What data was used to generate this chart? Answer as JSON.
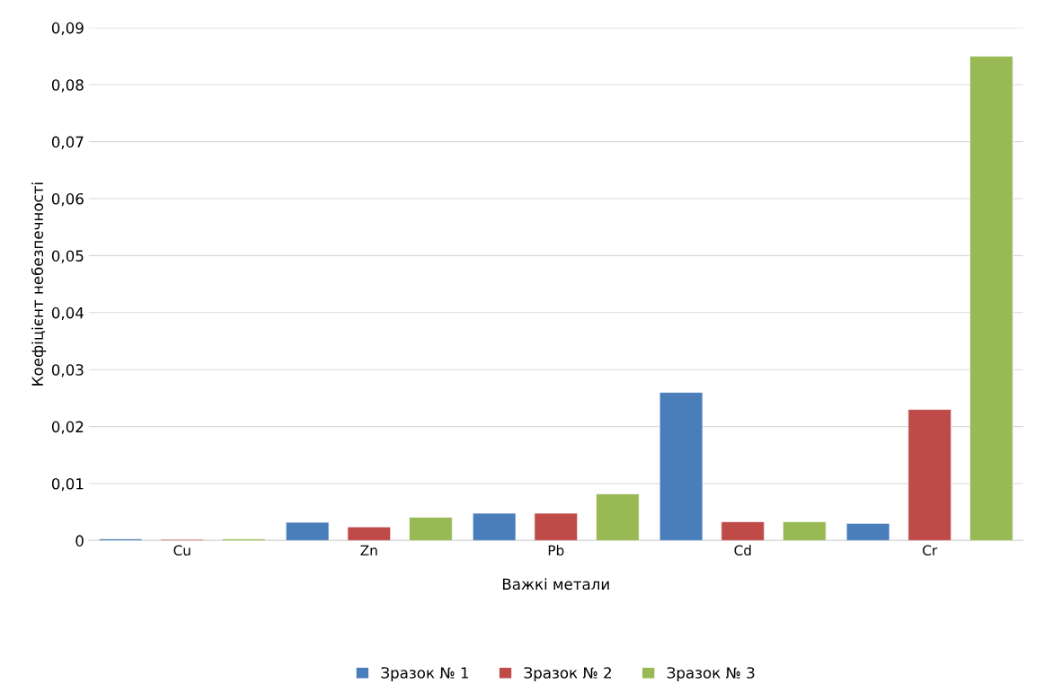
{
  "chart_data": {
    "type": "bar",
    "xlabel": "Важкі метали",
    "ylabel": "Коефіцієнт небезпечності",
    "categories": [
      "Cu",
      "Zn",
      "Pb",
      "Cd",
      "Cr"
    ],
    "series": [
      {
        "name": "Зразок № 1",
        "color": "#4a7ebb",
        "values": [
          0.0003,
          0.0032,
          0.0048,
          0.026,
          0.003
        ]
      },
      {
        "name": "Зразок № 2",
        "color": "#be4b48",
        "values": [
          0.0002,
          0.0024,
          0.0048,
          0.0033,
          0.023
        ]
      },
      {
        "name": "Зразок № 3",
        "color": "#98b954",
        "values": [
          0.0003,
          0.0041,
          0.0082,
          0.0033,
          0.085
        ]
      }
    ],
    "ylim": [
      0,
      0.09
    ],
    "yticks": [
      {
        "value": 0,
        "label": "0"
      },
      {
        "value": 0.01,
        "label": "0,01"
      },
      {
        "value": 0.02,
        "label": "0,02"
      },
      {
        "value": 0.03,
        "label": "0,03"
      },
      {
        "value": 0.04,
        "label": "0,04"
      },
      {
        "value": 0.05,
        "label": "0,05"
      },
      {
        "value": 0.06,
        "label": "0,06"
      },
      {
        "value": 0.07,
        "label": "0,07"
      },
      {
        "value": 0.08,
        "label": "0,08"
      },
      {
        "value": 0.09,
        "label": "0,09"
      }
    ],
    "grid": "y",
    "legend": "bottom"
  }
}
